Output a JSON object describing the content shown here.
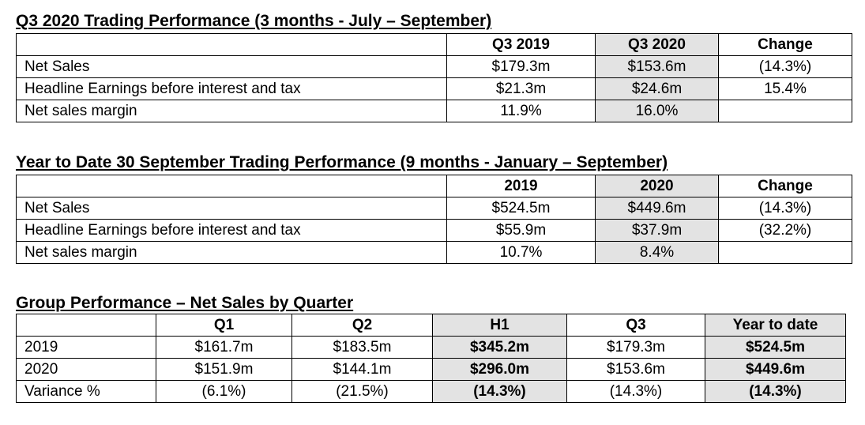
{
  "q3": {
    "title": "Q3 2020 Trading Performance (3 months - July – September)",
    "headers": [
      "",
      "Q3 2019",
      "Q3 2020",
      "Change"
    ],
    "rows": [
      {
        "label": "Net Sales",
        "v1": "$179.3m",
        "v2": "$153.6m",
        "change": "(14.3%)"
      },
      {
        "label": "Headline Earnings before interest and tax",
        "v1": "$21.3m",
        "v2": "$24.6m",
        "change": "15.4%"
      },
      {
        "label": "Net sales margin",
        "v1": "11.9%",
        "v2": "16.0%",
        "change": ""
      }
    ]
  },
  "ytd": {
    "title": "Year to Date 30 September Trading Performance (9 months - January – September)",
    "headers": [
      "",
      "2019",
      "2020",
      "Change"
    ],
    "rows": [
      {
        "label": "Net Sales",
        "v1": "$524.5m",
        "v2": "$449.6m",
        "change": "(14.3%)"
      },
      {
        "label": "Headline Earnings before interest and tax",
        "v1": "$55.9m",
        "v2": "$37.9m",
        "change": "(32.2%)"
      },
      {
        "label": "Net sales margin",
        "v1": "10.7%",
        "v2": "8.4%",
        "change": ""
      }
    ]
  },
  "group": {
    "title": "Group Performance – Net Sales by Quarter",
    "headers": [
      "",
      "Q1",
      "Q2",
      "H1",
      "Q3",
      "Year to date"
    ],
    "rows": [
      {
        "label": "2019",
        "q1": "$161.7m",
        "q2": "$183.5m",
        "h1": "$345.2m",
        "q3": "$179.3m",
        "ytd": "$524.5m"
      },
      {
        "label": "2020",
        "q1": "$151.9m",
        "q2": "$144.1m",
        "h1": "$296.0m",
        "q3": "$153.6m",
        "ytd": "$449.6m"
      },
      {
        "label": "Variance %",
        "q1": "(6.1%)",
        "q2": "(21.5%)",
        "h1": "(14.3%)",
        "q3": "(14.3%)",
        "ytd": "(14.3%)"
      }
    ]
  },
  "colors": {
    "shaded_column": "#e3e3e3",
    "border": "#000000"
  }
}
